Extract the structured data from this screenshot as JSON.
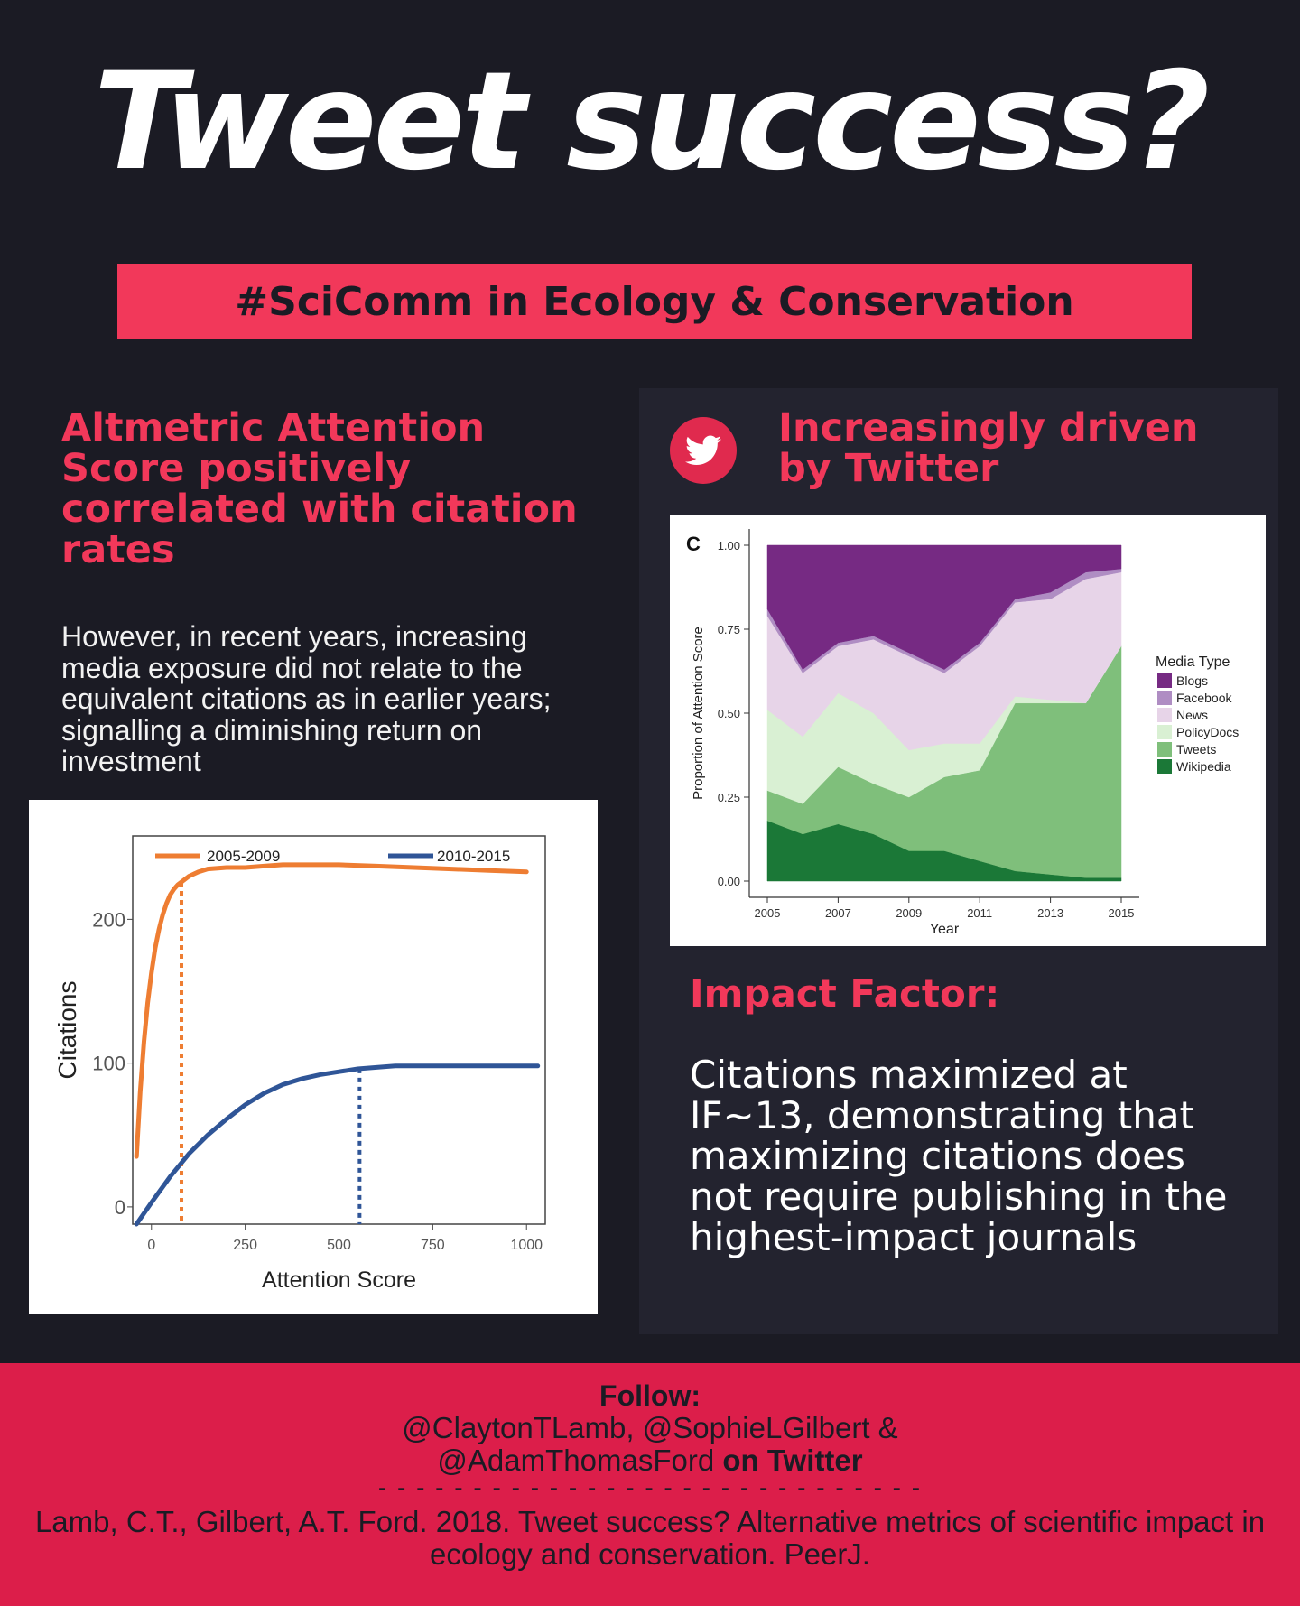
{
  "title": "Tweet success?",
  "banner": "#SciComm in Ecology & Conservation",
  "left": {
    "heading": "Altmetric Attention Score positively correlated with citation rates",
    "body": "However, in recent years, increasing media exposure did not relate to the equivalent citations as in earlier years; signalling a diminishing return on investment"
  },
  "right": {
    "icon": "twitter-bird-icon",
    "heading": "Increasingly driven by Twitter",
    "impact_heading": "Impact Factor:",
    "impact_body": "Citations maximized at IF~13, demonstrating that maximizing citations does not require publishing in the highest-impact journals"
  },
  "footer": {
    "follow": "Follow:",
    "handles_line1": "@ClaytonTLamb, @SophieLGilbert &",
    "handles_line2": "@AdamThomasFord",
    "handles_suffix": " on Twitter",
    "dashes": "- - - - - - - - - - - - - - - - - - - - - - - - - - - - -",
    "citation": "Lamb, C.T., Gilbert, A.T. Ford. 2018. Tweet success? Alternative metrics of scientific impact in ecology and conservation. PeerJ."
  },
  "colors": {
    "accent": "#f2385a",
    "background": "#1b1b24",
    "footer": "#dc1e4a",
    "orange": "#ee7d32",
    "blue": "#2f5597"
  },
  "chart_data": [
    {
      "type": "line",
      "title": "",
      "xlabel": "Attention Score",
      "ylabel": "Citations",
      "xlim": [
        -50,
        1050
      ],
      "ylim": [
        -12,
        258
      ],
      "xticks": [
        0,
        250,
        500,
        750,
        1000
      ],
      "yticks": [
        0,
        100,
        200
      ],
      "legend_position": "top",
      "series": [
        {
          "name": "2005-2009",
          "color": "#ee7d32",
          "x": [
            -40,
            -30,
            -20,
            -10,
            0,
            10,
            20,
            30,
            40,
            50,
            60,
            70,
            80,
            100,
            125,
            150,
            200,
            250,
            300,
            350,
            400,
            450,
            500,
            600,
            700,
            800,
            900,
            1000
          ],
          "y": [
            35,
            80,
            115,
            142,
            163,
            180,
            193,
            203,
            211,
            217,
            221,
            224,
            226,
            230,
            233,
            235,
            236,
            236,
            237,
            238,
            238,
            238,
            238,
            237,
            236,
            235,
            234,
            233
          ],
          "marker_x": 80
        },
        {
          "name": "2010-2015",
          "color": "#2f5597",
          "x": [
            -40,
            0,
            50,
            100,
            150,
            200,
            250,
            300,
            350,
            400,
            450,
            500,
            550,
            600,
            650,
            700,
            750,
            800,
            850,
            900,
            950,
            1000,
            1030
          ],
          "y": [
            -12,
            3,
            21,
            37,
            50,
            61,
            71,
            79,
            85,
            89,
            92,
            94,
            96,
            97,
            98,
            98,
            98,
            98,
            98,
            98,
            98,
            98,
            98
          ],
          "marker_x": 555
        }
      ]
    },
    {
      "type": "area",
      "panel_label": "C",
      "title": "",
      "xlabel": "Year",
      "ylabel": "Proportion of Attention Score",
      "x": [
        2005,
        2006,
        2007,
        2008,
        2009,
        2010,
        2011,
        2012,
        2013,
        2014,
        2015
      ],
      "xticks": [
        2005,
        2007,
        2009,
        2011,
        2013,
        2015
      ],
      "yticks": [
        "0.00",
        "0.25",
        "0.50",
        "0.75",
        "1.00"
      ],
      "ylim": [
        0,
        1
      ],
      "legend_title": "Media Type",
      "legend_position": "right",
      "series": [
        {
          "name": "Blogs",
          "color": "#762a83",
          "values": [
            0.19,
            0.37,
            0.29,
            0.27,
            0.32,
            0.37,
            0.29,
            0.16,
            0.14,
            0.08,
            0.07
          ]
        },
        {
          "name": "Facebook",
          "color": "#af8dc3",
          "values": [
            0.02,
            0.01,
            0.01,
            0.01,
            0.01,
            0.01,
            0.01,
            0.01,
            0.02,
            0.02,
            0.01
          ]
        },
        {
          "name": "News",
          "color": "#e7d4e8",
          "values": [
            0.28,
            0.19,
            0.14,
            0.22,
            0.28,
            0.21,
            0.29,
            0.28,
            0.3,
            0.37,
            0.22
          ]
        },
        {
          "name": "PolicyDocs",
          "color": "#d9f0d3",
          "values": [
            0.24,
            0.2,
            0.22,
            0.21,
            0.14,
            0.1,
            0.08,
            0.02,
            0.01,
            0.0,
            0.0
          ]
        },
        {
          "name": "Tweets",
          "color": "#7fbf7b",
          "values": [
            0.09,
            0.09,
            0.17,
            0.15,
            0.16,
            0.22,
            0.27,
            0.5,
            0.51,
            0.52,
            0.69
          ]
        },
        {
          "name": "Wikipedia",
          "color": "#1b7837",
          "values": [
            0.18,
            0.14,
            0.17,
            0.14,
            0.09,
            0.09,
            0.06,
            0.03,
            0.02,
            0.01,
            0.01
          ]
        }
      ]
    }
  ]
}
